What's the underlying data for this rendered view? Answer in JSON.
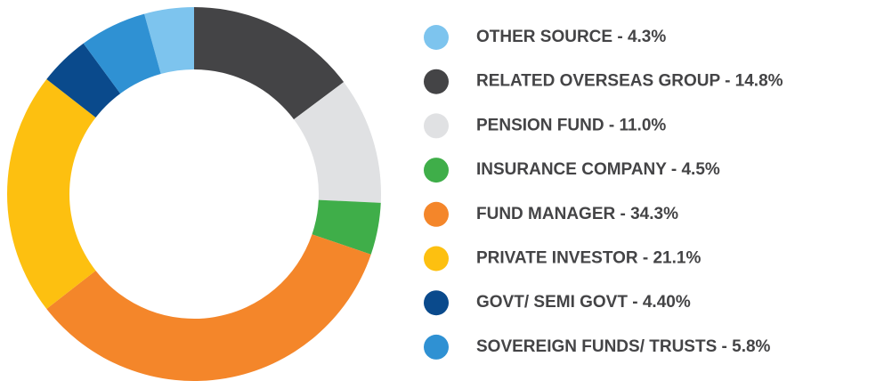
{
  "chart_data": {
    "type": "donut",
    "categories": [
      "OTHER SOURCE - 4.3%",
      "RELATED OVERSEAS GROUP - 14.8%",
      "PENSION FUND - 11.0%",
      "INSURANCE COMPANY - 4.5%",
      "FUND MANAGER - 34.3%",
      "PRIVATE INVESTOR - 21.1%",
      "GOVT/ SEMI GOVT - 4.40%",
      "SOVEREIGN FUNDS/ TRUSTS - 5.8%"
    ],
    "values": [
      4.3,
      14.8,
      11.0,
      4.5,
      34.3,
      21.1,
      4.4,
      5.8
    ],
    "colors": [
      "#7dc4ee",
      "#444446",
      "#e0e1e3",
      "#3fae49",
      "#f4862a",
      "#fdc010",
      "#0a4a8c",
      "#2f91d3"
    ]
  }
}
